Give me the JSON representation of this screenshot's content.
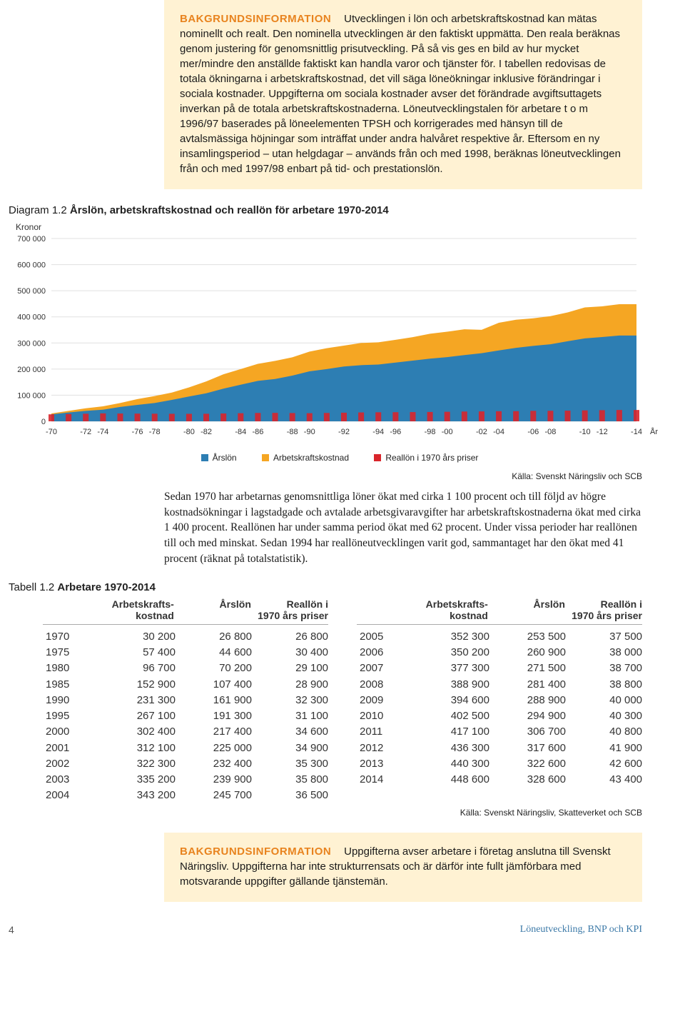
{
  "infobox1": {
    "title": "BAKGRUNDSINFORMATION",
    "body": "Utvecklingen i lön och arbetskraftskostnad kan mätas nominellt och realt. Den nominella utvecklingen är den faktiskt uppmätta. Den reala beräknas genom justering för genomsnittlig prisutveckling. På så vis ges en bild av hur mycket mer/mindre den anställde faktiskt kan handla varor och tjänster för. I tabellen redovisas de totala ökningarna i arbetskraftskostnad, det vill säga löneökningar inklusive förändringar i sociala kostnader. Uppgifterna om sociala kostnader avser det förändrade avgiftsuttagets inverkan på de totala arbetskraftskostnaderna. Löneutvecklingstalen för arbetare t o m 1996/97 baserades på löneelementen TPSH och korrigerades med hänsyn till de avtalsmässiga höjningar som inträffat under andra halvåret respektive år. Eftersom en ny insamlingsperiod – utan helgdagar – används från och med 1998, beräknas löneutvecklingen från och med 1997/98 enbart på tid- och prestationslön."
  },
  "diagram": {
    "prefix": "Diagram 1.2",
    "title": "Årslön, arbetskraftskostnad och reallön för arbetare 1970-2014",
    "y_axis_label": "Kronor",
    "x_suffix": "År",
    "ylim": [
      0,
      700000
    ],
    "ytick_step": 100000,
    "yticks_labels": [
      "0",
      "100 000",
      "200 000",
      "300 000",
      "400 000",
      "500 000",
      "600 000",
      "700 000"
    ],
    "x_labels": [
      "-70",
      "-72",
      "-74",
      "-76",
      "-78",
      "-80",
      "-82",
      "-84",
      "-86",
      "-88",
      "-90",
      "-92",
      "-94",
      "-96",
      "-98",
      "-00",
      "-02",
      "-04",
      "-06",
      "-08",
      "-10",
      "-12",
      "-14"
    ],
    "colors": {
      "arslon": "#2d7eb3",
      "arbetskraft": "#f5a623",
      "reallon": "#d9252b",
      "grid": "#e0e0e0",
      "bg": "#ffffff"
    },
    "series": {
      "arbetskraftskostnad": [
        30200,
        40000,
        50000,
        57400,
        70000,
        85000,
        96700,
        110000,
        130000,
        152900,
        180000,
        200000,
        220000,
        231300,
        245000,
        267100,
        280000,
        290000,
        300000,
        302400,
        312100,
        322300,
        335200,
        343200,
        352300,
        350200,
        377300,
        388900,
        394600,
        402500,
        417100,
        436300,
        440300,
        448600,
        448600
      ],
      "arslon": [
        26800,
        34000,
        40000,
        44600,
        55000,
        63000,
        70200,
        82000,
        95000,
        107400,
        125000,
        140000,
        155000,
        161900,
        175000,
        191300,
        200000,
        210000,
        215000,
        217400,
        225000,
        232400,
        239900,
        245700,
        253500,
        260900,
        271500,
        281400,
        288900,
        294900,
        306700,
        317600,
        322600,
        328600,
        328600
      ],
      "reallon": [
        26800,
        28000,
        29000,
        30400,
        29800,
        29500,
        29100,
        28800,
        28700,
        28900,
        30000,
        31000,
        32000,
        32300,
        31700,
        31100,
        32000,
        33000,
        34000,
        34600,
        34900,
        35300,
        35800,
        36500,
        37500,
        38000,
        38700,
        38800,
        40000,
        40300,
        40800,
        41900,
        42600,
        43400,
        43400
      ]
    },
    "legend": {
      "arslon": "Årslön",
      "arbetskraft": "Arbetskraftskostnad",
      "reallon": "Reallön i 1970 års priser"
    },
    "source": "Källa: Svenskt Näringsliv och SCB"
  },
  "paragraph": "Sedan 1970 har arbetarnas genomsnittliga löner ökat med cirka 1 100 procent och till följd av högre kostnadsökningar i lagstadgade och avtalade arbetsgivaravgifter har arbetskraftskost­naderna ökat med cirka 1 400 procent. Reallönen har under samma period ökat med 62 procent. Under vissa perioder har reallönen till och med minskat. Sedan 1994 har reallöne­utvecklingen varit god, sammantaget har den ökat med 41 procent (räknat på totalstatistik).",
  "table": {
    "prefix": "Tabell 1.2",
    "title": "Arbetare 1970-2014",
    "columns": {
      "c1": "Arbetskrafts-\nkostnad",
      "c2": "Årslön",
      "c3": "Reallön i\n1970 års priser"
    },
    "left_rows": [
      [
        "1970",
        "30 200",
        "26 800",
        "26 800"
      ],
      [
        "1975",
        "57 400",
        "44 600",
        "30 400"
      ],
      [
        "1980",
        "96 700",
        "70 200",
        "29 100"
      ],
      [
        "1985",
        "152 900",
        "107 400",
        "28 900"
      ],
      [
        "1990",
        "231 300",
        "161 900",
        "32 300"
      ],
      [
        "1995",
        "267 100",
        "191 300",
        "31 100"
      ],
      [
        "2000",
        "302 400",
        "217 400",
        "34 600"
      ],
      [
        "2001",
        "312 100",
        "225 000",
        "34 900"
      ],
      [
        "2002",
        "322 300",
        "232 400",
        "35 300"
      ],
      [
        "2003",
        "335 200",
        "239 900",
        "35 800"
      ],
      [
        "2004",
        "343 200",
        "245 700",
        "36 500"
      ]
    ],
    "right_rows": [
      [
        "2005",
        "352 300",
        "253 500",
        "37 500"
      ],
      [
        "2006",
        "350 200",
        "260 900",
        "38 000"
      ],
      [
        "2007",
        "377 300",
        "271 500",
        "38 700"
      ],
      [
        "2008",
        "388 900",
        "281 400",
        "38 800"
      ],
      [
        "2009",
        "394 600",
        "288 900",
        "40 000"
      ],
      [
        "2010",
        "402 500",
        "294 900",
        "40 300"
      ],
      [
        "2011",
        "417 100",
        "306 700",
        "40 800"
      ],
      [
        "2012",
        "436 300",
        "317 600",
        "41 900"
      ],
      [
        "2013",
        "440 300",
        "322 600",
        "42 600"
      ],
      [
        "2014",
        "448 600",
        "328 600",
        "43 400"
      ]
    ],
    "source": "Källa: Svenskt Näringsliv, Skatteverket och SCB"
  },
  "infobox2": {
    "title": "BAKGRUNDSINFORMATION",
    "body": "Uppgifterna avser arbetare i företag anslutna till Svenskt Näringsliv. Uppgifterna har inte strukturrensats och är därför inte fullt jämförbara med motsvarande uppgifter gällande tjänstemän."
  },
  "footer": {
    "page": "4",
    "title": "Löneutveckling, BNP och KPI"
  }
}
